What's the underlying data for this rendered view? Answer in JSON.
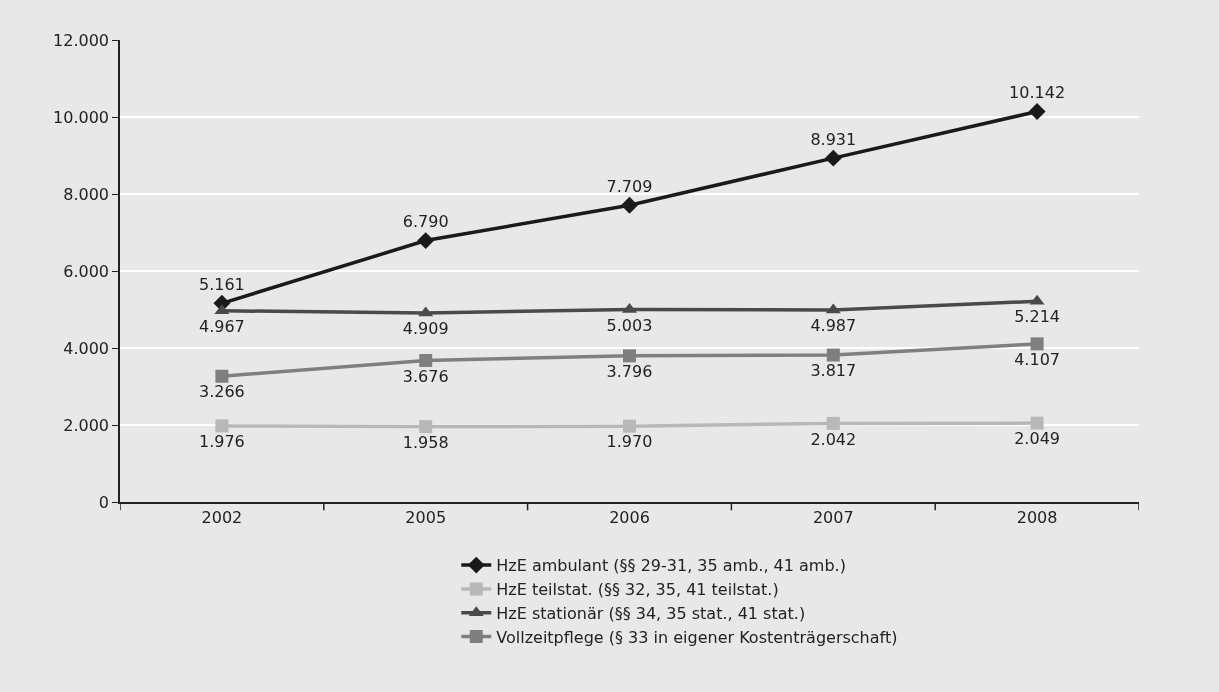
{
  "chart_data": {
    "type": "line",
    "categories": [
      "2002",
      "2005",
      "2006",
      "2007",
      "2008"
    ],
    "series": [
      {
        "name": "HzE ambulant (§§ 29-31, 35 amb., 41 amb.)",
        "color": "#1a1a1a",
        "marker": "diamond",
        "values": [
          5161,
          6790,
          7709,
          8931,
          10142
        ],
        "value_labels": [
          "5.161",
          "6.790",
          "7.709",
          "8.931",
          "10.142"
        ]
      },
      {
        "name": "HzE teilstat. (§§ 32, 35, 41 teilstat.)",
        "color": "#b8b8b8",
        "marker": "square",
        "values": [
          1976,
          1958,
          1970,
          2042,
          2049
        ],
        "value_labels": [
          "1.976",
          "1.958",
          "1.970",
          "2.042",
          "2.049"
        ]
      },
      {
        "name": "HzE stationär (§§ 34, 35 stat., 41 stat.)",
        "color": "#4a4a4a",
        "marker": "triangle",
        "values": [
          4967,
          4909,
          5003,
          4987,
          5214
        ],
        "value_labels": [
          "4.967",
          "4.909",
          "5.003",
          "4.987",
          "5.214"
        ]
      },
      {
        "name": "Vollzeitpflege (§ 33 in eigener Kostenträgerschaft)",
        "color": "#7f7f7f",
        "marker": "square",
        "values": [
          3266,
          3676,
          3796,
          3817,
          4107
        ],
        "value_labels": [
          "3.266",
          "3.676",
          "3.796",
          "3.817",
          "4.107"
        ]
      }
    ],
    "ylim": [
      0,
      12000
    ],
    "yticks": [
      0,
      {
        "value": 2000,
        "label": "2.000"
      },
      {
        "value": 4000,
        "label": "4.000"
      },
      {
        "value": 6000,
        "label": "6.000"
      },
      {
        "value": 8000,
        "label": "8.000"
      },
      {
        "value": 10000,
        "label": "10.000"
      },
      {
        "value": 12000,
        "label": "12.000"
      }
    ],
    "grid": "y",
    "legend": "bottom",
    "line_style": "solid"
  }
}
